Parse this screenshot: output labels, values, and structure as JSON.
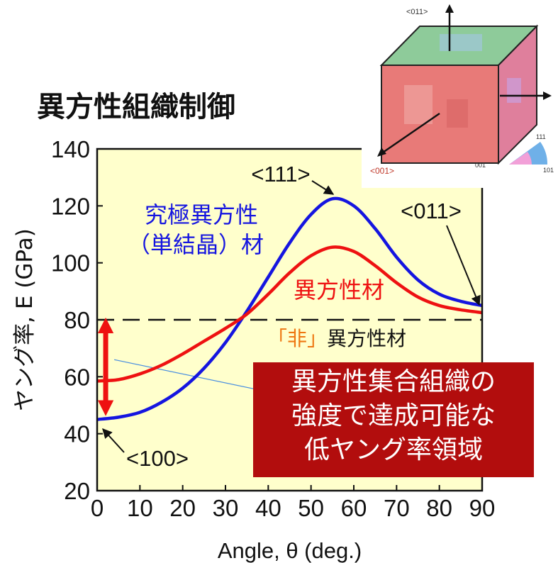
{
  "page_title": "異方性組織制御",
  "inset": {
    "labels": {
      "top": "<011>",
      "left": "<001>",
      "key_111": "111",
      "key_001": "001",
      "key_101": "101"
    },
    "colors": {
      "front": "#e87a78",
      "side": "#df7f9c",
      "top": "#8ecb9a"
    }
  },
  "highlight_box": {
    "lines": [
      "異方性集合組織の",
      "強度で達成可能な",
      "低ヤング率領域"
    ],
    "color": "#b20d0d"
  },
  "chart_data": {
    "type": "line",
    "xlabel": "Angle, θ (deg.)",
    "ylabel": "ヤング率, E (GPa)",
    "xlim": [
      0,
      90
    ],
    "ylim": [
      20,
      140
    ],
    "xticks": [
      0,
      10,
      20,
      30,
      40,
      50,
      60,
      70,
      80,
      90
    ],
    "yticks": [
      20,
      40,
      60,
      80,
      100,
      120,
      140
    ],
    "series": [
      {
        "name": "究極異方性（単結晶）材",
        "color": "#1515e0",
        "points": [
          [
            0,
            45
          ],
          [
            5,
            45.8
          ],
          [
            10,
            47.5
          ],
          [
            15,
            51
          ],
          [
            20,
            56
          ],
          [
            25,
            63
          ],
          [
            30,
            72
          ],
          [
            35,
            83
          ],
          [
            40,
            95
          ],
          [
            45,
            107
          ],
          [
            50,
            117
          ],
          [
            55,
            122.5
          ],
          [
            60,
            120
          ],
          [
            65,
            112
          ],
          [
            70,
            102
          ],
          [
            75,
            94
          ],
          [
            80,
            89
          ],
          [
            85,
            86.5
          ],
          [
            90,
            85
          ]
        ]
      },
      {
        "name": "異方性材",
        "color": "#ee1111",
        "points": [
          [
            0,
            58.5
          ],
          [
            5,
            59
          ],
          [
            10,
            61
          ],
          [
            15,
            64
          ],
          [
            20,
            68
          ],
          [
            25,
            72.5
          ],
          [
            30,
            77
          ],
          [
            35,
            82
          ],
          [
            40,
            89
          ],
          [
            45,
            96.5
          ],
          [
            50,
            102.5
          ],
          [
            55,
            105.5
          ],
          [
            60,
            104
          ],
          [
            65,
            99
          ],
          [
            70,
            93
          ],
          [
            75,
            88
          ],
          [
            80,
            85
          ],
          [
            85,
            83.5
          ],
          [
            90,
            82.5
          ]
        ]
      }
    ],
    "isotropic_line": {
      "y": 80,
      "label_bracket": "「非」",
      "label_rest": "異方性材",
      "color": "#111111"
    },
    "thin_line": {
      "from": [
        4,
        66
      ],
      "to": [
        55,
        50
      ],
      "color": "#4a8fe0"
    },
    "range_arrow": {
      "x": 2,
      "y_low": 45,
      "y_high": 80,
      "color": "#ee1111"
    },
    "annotations": {
      "a111": "<111>",
      "a011": "<011>",
      "a100": "<100>",
      "blue_label_1": "究極異方性",
      "blue_label_2": "（単結晶）材",
      "red_label": "異方性材"
    },
    "plot_background": "#ffffcc"
  }
}
